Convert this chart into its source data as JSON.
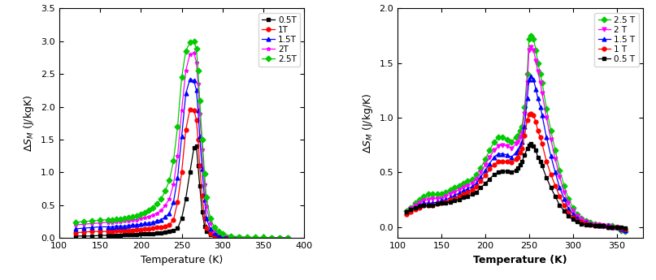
{
  "left": {
    "ylabel": "$\\Delta S_{M}$ (J/kgK)",
    "xlabel": "Temperature (K)",
    "xlim": [
      100,
      400
    ],
    "ylim": [
      0,
      3.5
    ],
    "yticks": [
      0.0,
      0.5,
      1.0,
      1.5,
      2.0,
      2.5,
      3.0,
      3.5
    ],
    "xticks": [
      100,
      150,
      200,
      250,
      300,
      350,
      400
    ],
    "series": [
      {
        "label": "0.5T",
        "color": "black",
        "marker": "s",
        "T": [
          120,
          130,
          140,
          150,
          160,
          165,
          170,
          175,
          180,
          185,
          190,
          195,
          200,
          205,
          210,
          215,
          220,
          225,
          230,
          235,
          240,
          245,
          250,
          255,
          260,
          265,
          268,
          270,
          272,
          275,
          278,
          280,
          285,
          290,
          295,
          300,
          310,
          320,
          330,
          340,
          350,
          360,
          370,
          380
        ],
        "vals": [
          0.03,
          0.03,
          0.03,
          0.04,
          0.04,
          0.04,
          0.04,
          0.04,
          0.05,
          0.05,
          0.05,
          0.05,
          0.06,
          0.06,
          0.07,
          0.07,
          0.08,
          0.08,
          0.09,
          0.1,
          0.11,
          0.15,
          0.3,
          0.6,
          1.0,
          1.38,
          1.4,
          1.1,
          0.8,
          0.4,
          0.18,
          0.1,
          0.05,
          0.03,
          0.02,
          0.01,
          0.01,
          0.01,
          0.0,
          0.0,
          0.0,
          0.0,
          0.0,
          0.0
        ]
      },
      {
        "label": "1T",
        "color": "red",
        "marker": "o",
        "T": [
          120,
          130,
          140,
          150,
          160,
          165,
          170,
          175,
          180,
          185,
          190,
          195,
          200,
          205,
          210,
          215,
          220,
          225,
          230,
          235,
          240,
          245,
          250,
          255,
          260,
          265,
          268,
          270,
          272,
          275,
          278,
          280,
          285,
          290,
          295,
          300,
          310,
          320,
          330,
          340,
          350,
          360,
          370,
          380
        ],
        "vals": [
          0.08,
          0.09,
          0.1,
          0.1,
          0.1,
          0.1,
          0.11,
          0.11,
          0.11,
          0.12,
          0.12,
          0.13,
          0.13,
          0.14,
          0.14,
          0.15,
          0.16,
          0.17,
          0.18,
          0.2,
          0.28,
          0.55,
          1.0,
          1.65,
          1.96,
          1.95,
          1.8,
          1.5,
          1.1,
          0.65,
          0.3,
          0.15,
          0.07,
          0.04,
          0.03,
          0.02,
          0.01,
          0.01,
          0.0,
          0.0,
          0.0,
          0.0,
          0.0,
          0.0
        ]
      },
      {
        "label": "1.5T",
        "color": "blue",
        "marker": "^",
        "T": [
          120,
          130,
          140,
          150,
          160,
          165,
          170,
          175,
          180,
          185,
          190,
          195,
          200,
          205,
          210,
          215,
          220,
          225,
          230,
          235,
          240,
          245,
          250,
          255,
          260,
          265,
          268,
          270,
          272,
          275,
          278,
          280,
          285,
          290,
          295,
          300,
          310,
          320,
          330,
          340,
          350,
          360,
          370,
          380
        ],
        "vals": [
          0.14,
          0.15,
          0.16,
          0.17,
          0.17,
          0.17,
          0.18,
          0.18,
          0.18,
          0.19,
          0.2,
          0.2,
          0.21,
          0.22,
          0.23,
          0.24,
          0.26,
          0.28,
          0.32,
          0.38,
          0.55,
          0.92,
          1.55,
          2.2,
          2.42,
          2.4,
          2.25,
          1.95,
          1.55,
          1.05,
          0.58,
          0.3,
          0.14,
          0.08,
          0.05,
          0.03,
          0.02,
          0.01,
          0.01,
          0.0,
          0.0,
          0.0,
          0.0,
          0.0
        ]
      },
      {
        "label": "2T",
        "color": "magenta",
        "marker": "*",
        "T": [
          120,
          130,
          140,
          150,
          160,
          165,
          170,
          175,
          180,
          185,
          190,
          195,
          200,
          205,
          210,
          215,
          220,
          225,
          230,
          235,
          240,
          245,
          250,
          255,
          260,
          265,
          268,
          270,
          272,
          275,
          278,
          280,
          285,
          290,
          295,
          300,
          310,
          320,
          330,
          340,
          350,
          360,
          370,
          380
        ],
        "vals": [
          0.2,
          0.21,
          0.22,
          0.23,
          0.24,
          0.24,
          0.25,
          0.25,
          0.26,
          0.26,
          0.27,
          0.28,
          0.3,
          0.31,
          0.33,
          0.35,
          0.38,
          0.42,
          0.5,
          0.6,
          0.82,
          1.25,
          1.95,
          2.55,
          2.8,
          2.82,
          2.68,
          2.35,
          1.9,
          1.35,
          0.82,
          0.48,
          0.22,
          0.12,
          0.08,
          0.05,
          0.02,
          0.01,
          0.01,
          0.01,
          0.0,
          0.0,
          0.0,
          0.0
        ]
      },
      {
        "label": "2.5T",
        "color": "#00cc00",
        "marker": "D",
        "T": [
          120,
          130,
          140,
          150,
          160,
          165,
          170,
          175,
          180,
          185,
          190,
          195,
          200,
          205,
          210,
          215,
          220,
          225,
          230,
          235,
          240,
          245,
          250,
          255,
          260,
          265,
          268,
          270,
          272,
          275,
          278,
          280,
          285,
          290,
          295,
          300,
          310,
          320,
          330,
          340,
          350,
          360,
          370,
          380
        ],
        "vals": [
          0.24,
          0.25,
          0.26,
          0.27,
          0.28,
          0.28,
          0.29,
          0.29,
          0.3,
          0.31,
          0.32,
          0.34,
          0.36,
          0.39,
          0.42,
          0.46,
          0.52,
          0.6,
          0.72,
          0.88,
          1.18,
          1.7,
          2.45,
          2.85,
          2.98,
          3.0,
          2.88,
          2.55,
          2.1,
          1.5,
          0.98,
          0.62,
          0.3,
          0.16,
          0.1,
          0.07,
          0.03,
          0.02,
          0.01,
          0.01,
          0.01,
          0.0,
          0.0,
          0.0
        ]
      }
    ]
  },
  "right": {
    "ylabel": "$\\Delta S_{M}$ (J/kg/K)",
    "xlabel": "Temperature (K)",
    "xlim": [
      100,
      380
    ],
    "ylim": [
      -0.1,
      2.0
    ],
    "yticks": [
      0.0,
      0.5,
      1.0,
      1.5,
      2.0
    ],
    "xticks": [
      100,
      150,
      200,
      250,
      300,
      350
    ],
    "series": [
      {
        "label": "2.5 T",
        "color": "#00cc00",
        "marker": "D",
        "T": [
          110,
          115,
          120,
          125,
          130,
          135,
          140,
          145,
          150,
          155,
          160,
          165,
          170,
          175,
          180,
          185,
          190,
          195,
          200,
          205,
          210,
          215,
          220,
          225,
          230,
          235,
          237,
          240,
          242,
          245,
          248,
          250,
          252,
          255,
          258,
          260,
          263,
          265,
          270,
          275,
          280,
          285,
          290,
          295,
          300,
          305,
          310,
          315,
          320,
          325,
          330,
          335,
          340,
          345,
          350,
          355,
          360
        ],
        "vals": [
          0.15,
          0.18,
          0.22,
          0.25,
          0.28,
          0.3,
          0.3,
          0.3,
          0.3,
          0.32,
          0.34,
          0.36,
          0.38,
          0.4,
          0.42,
          0.44,
          0.48,
          0.54,
          0.62,
          0.7,
          0.78,
          0.82,
          0.82,
          0.8,
          0.78,
          0.82,
          0.84,
          0.88,
          0.92,
          1.1,
          1.4,
          1.72,
          1.75,
          1.72,
          1.62,
          1.5,
          1.4,
          1.32,
          1.08,
          0.88,
          0.7,
          0.52,
          0.38,
          0.26,
          0.18,
          0.12,
          0.08,
          0.06,
          0.04,
          0.03,
          0.02,
          0.01,
          0.01,
          0.01,
          0.0,
          -0.03,
          -0.04
        ]
      },
      {
        "label": "2 T",
        "color": "magenta",
        "marker": "v",
        "T": [
          110,
          115,
          120,
          125,
          130,
          135,
          140,
          145,
          150,
          155,
          160,
          165,
          170,
          175,
          180,
          185,
          190,
          195,
          200,
          205,
          210,
          215,
          220,
          225,
          230,
          235,
          237,
          240,
          242,
          245,
          248,
          250,
          252,
          255,
          258,
          260,
          263,
          265,
          270,
          275,
          280,
          285,
          290,
          295,
          300,
          305,
          310,
          315,
          320,
          325,
          330,
          335,
          340,
          345,
          350,
          355,
          360
        ],
        "vals": [
          0.14,
          0.17,
          0.2,
          0.22,
          0.24,
          0.25,
          0.26,
          0.26,
          0.26,
          0.28,
          0.3,
          0.32,
          0.34,
          0.36,
          0.38,
          0.4,
          0.44,
          0.5,
          0.57,
          0.64,
          0.7,
          0.74,
          0.75,
          0.74,
          0.72,
          0.76,
          0.78,
          0.82,
          0.86,
          1.04,
          1.32,
          1.62,
          1.65,
          1.62,
          1.52,
          1.42,
          1.32,
          1.22,
          1.0,
          0.8,
          0.62,
          0.46,
          0.32,
          0.22,
          0.15,
          0.1,
          0.07,
          0.05,
          0.03,
          0.02,
          0.02,
          0.01,
          0.01,
          0.0,
          0.0,
          -0.03,
          -0.04
        ]
      },
      {
        "label": "1.5 T",
        "color": "blue",
        "marker": "^",
        "T": [
          110,
          115,
          120,
          125,
          130,
          135,
          140,
          145,
          150,
          155,
          160,
          165,
          170,
          175,
          180,
          185,
          190,
          195,
          200,
          205,
          210,
          215,
          220,
          225,
          230,
          235,
          237,
          240,
          242,
          245,
          248,
          250,
          252,
          255,
          258,
          260,
          263,
          265,
          270,
          275,
          280,
          285,
          290,
          295,
          300,
          305,
          310,
          315,
          320,
          325,
          330,
          335,
          340,
          345,
          350,
          355,
          360
        ],
        "vals": [
          0.13,
          0.15,
          0.18,
          0.2,
          0.22,
          0.22,
          0.22,
          0.23,
          0.24,
          0.25,
          0.27,
          0.29,
          0.31,
          0.33,
          0.35,
          0.37,
          0.4,
          0.46,
          0.52,
          0.58,
          0.64,
          0.67,
          0.67,
          0.66,
          0.64,
          0.68,
          0.7,
          0.74,
          0.78,
          0.92,
          1.18,
          1.35,
          1.38,
          1.35,
          1.26,
          1.18,
          1.1,
          1.02,
          0.82,
          0.65,
          0.5,
          0.36,
          0.26,
          0.17,
          0.12,
          0.08,
          0.05,
          0.04,
          0.03,
          0.02,
          0.01,
          0.01,
          0.01,
          0.0,
          0.0,
          -0.02,
          -0.03
        ]
      },
      {
        "label": "1 T",
        "color": "red",
        "marker": "o",
        "T": [
          110,
          115,
          120,
          125,
          130,
          135,
          140,
          145,
          150,
          155,
          160,
          165,
          170,
          175,
          180,
          185,
          190,
          195,
          200,
          205,
          210,
          215,
          220,
          225,
          230,
          235,
          237,
          240,
          242,
          245,
          248,
          250,
          252,
          255,
          258,
          260,
          263,
          265,
          270,
          275,
          280,
          285,
          290,
          295,
          300,
          305,
          310,
          315,
          320,
          325,
          330,
          335,
          340,
          345,
          350,
          355,
          360
        ],
        "vals": [
          0.12,
          0.14,
          0.16,
          0.18,
          0.2,
          0.2,
          0.2,
          0.21,
          0.22,
          0.23,
          0.25,
          0.26,
          0.28,
          0.3,
          0.32,
          0.34,
          0.37,
          0.42,
          0.47,
          0.53,
          0.57,
          0.6,
          0.6,
          0.6,
          0.59,
          0.62,
          0.64,
          0.68,
          0.72,
          0.84,
          0.98,
          1.03,
          1.04,
          1.02,
          0.96,
          0.88,
          0.82,
          0.76,
          0.6,
          0.48,
          0.38,
          0.28,
          0.2,
          0.13,
          0.09,
          0.06,
          0.04,
          0.03,
          0.02,
          0.01,
          0.01,
          0.01,
          0.0,
          0.0,
          0.0,
          -0.01,
          -0.02
        ]
      },
      {
        "label": "0.5 T",
        "color": "black",
        "marker": "s",
        "T": [
          110,
          115,
          120,
          125,
          130,
          135,
          140,
          145,
          150,
          155,
          160,
          165,
          170,
          175,
          180,
          185,
          190,
          195,
          200,
          205,
          210,
          215,
          220,
          225,
          230,
          235,
          237,
          240,
          242,
          245,
          248,
          250,
          252,
          255,
          258,
          260,
          263,
          265,
          270,
          275,
          280,
          285,
          290,
          295,
          300,
          305,
          310,
          315,
          320,
          325,
          330,
          335,
          340,
          345,
          350,
          355,
          360
        ],
        "vals": [
          0.14,
          0.16,
          0.18,
          0.19,
          0.2,
          0.2,
          0.2,
          0.21,
          0.22,
          0.22,
          0.23,
          0.24,
          0.25,
          0.27,
          0.28,
          0.3,
          0.32,
          0.36,
          0.4,
          0.44,
          0.48,
          0.5,
          0.51,
          0.51,
          0.5,
          0.52,
          0.54,
          0.57,
          0.6,
          0.66,
          0.72,
          0.75,
          0.76,
          0.74,
          0.7,
          0.64,
          0.6,
          0.56,
          0.45,
          0.36,
          0.28,
          0.2,
          0.15,
          0.1,
          0.07,
          0.05,
          0.03,
          0.02,
          0.02,
          0.01,
          0.01,
          0.01,
          0.0,
          0.0,
          0.0,
          0.0,
          -0.01
        ]
      }
    ]
  }
}
